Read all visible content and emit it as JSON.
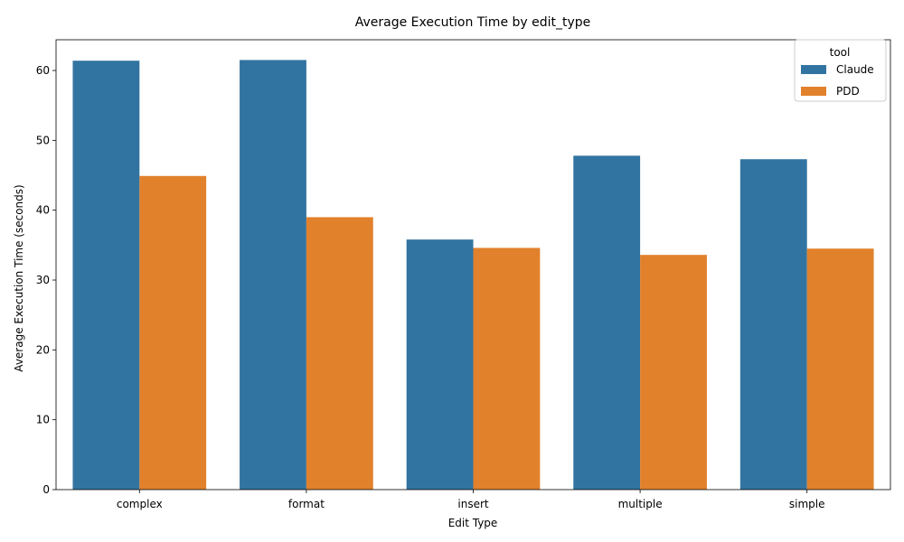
{
  "chart_data": {
    "type": "bar",
    "title": "Average Execution Time by edit_type",
    "xlabel": "Edit Type",
    "ylabel": "Average Execution Time (seconds)",
    "categories": [
      "complex",
      "format",
      "insert",
      "multiple",
      "simple"
    ],
    "series": [
      {
        "name": "Claude",
        "values": [
          61.4,
          61.5,
          35.8,
          47.8,
          47.3
        ],
        "color": "#3274a1"
      },
      {
        "name": "PDD",
        "values": [
          44.9,
          39.0,
          34.6,
          33.6,
          34.5
        ],
        "color": "#e1812c"
      }
    ],
    "ylim": [
      0,
      64.4
    ],
    "yticks": [
      0,
      10,
      20,
      30,
      40,
      50,
      60
    ],
    "grid": false,
    "legend": {
      "title": "tool",
      "placement": "top-right"
    }
  }
}
